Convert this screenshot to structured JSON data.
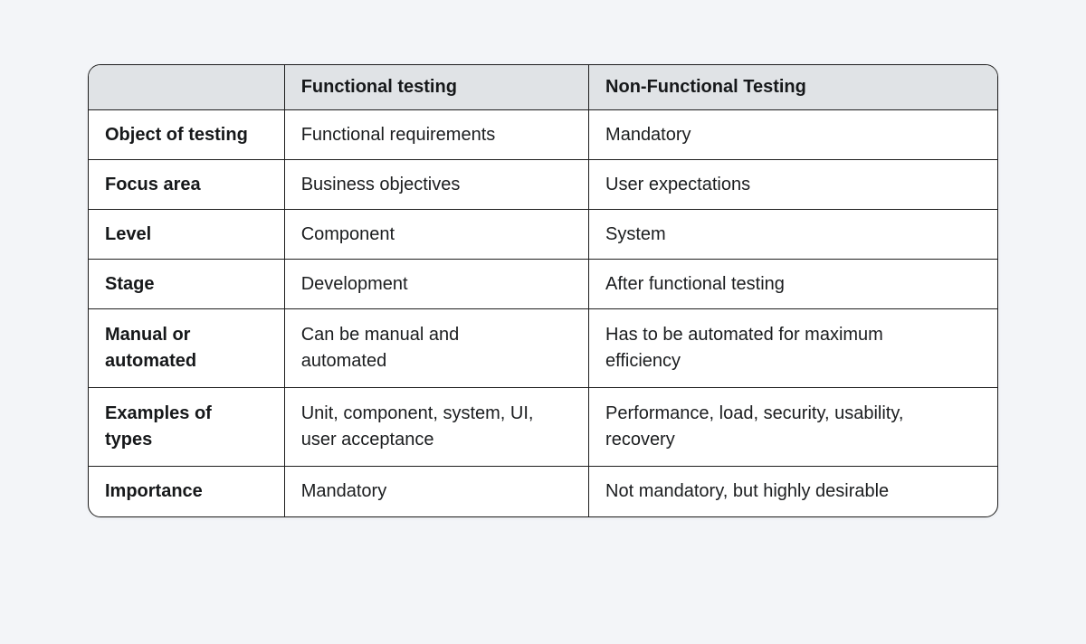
{
  "page": {
    "background_color": "#f3f5f8"
  },
  "table": {
    "colors": {
      "header_bg": "#e0e3e6",
      "border": "#1e1e1e",
      "cell_bg": "#ffffff",
      "text": "#1b1d1f"
    },
    "header": {
      "corner_label": "",
      "columns": [
        "Functional testing",
        "Non-Functional Testing"
      ]
    },
    "rows": [
      {
        "label": "Object of testing",
        "functional": "Functional requirements",
        "non_functional": "Mandatory"
      },
      {
        "label": "Focus area",
        "functional": "Business objectives",
        "non_functional": "User expectations"
      },
      {
        "label": "Level",
        "functional": "Component",
        "non_functional": "System"
      },
      {
        "label": "Stage",
        "functional": "Development",
        "non_functional": "After functional testing"
      },
      {
        "label": "Manual or\nautomated",
        "functional": "Can be manual and\nautomated",
        "non_functional": "Has to be automated for maximum\nefficiency"
      },
      {
        "label": "Examples of\ntypes",
        "functional": "Unit, component, system, UI,\nuser acceptance",
        "non_functional": "Performance, load, security, usability,\nrecovery"
      },
      {
        "label": "Importance",
        "functional": "Mandatory",
        "non_functional": "Not mandatory, but highly desirable"
      }
    ]
  }
}
